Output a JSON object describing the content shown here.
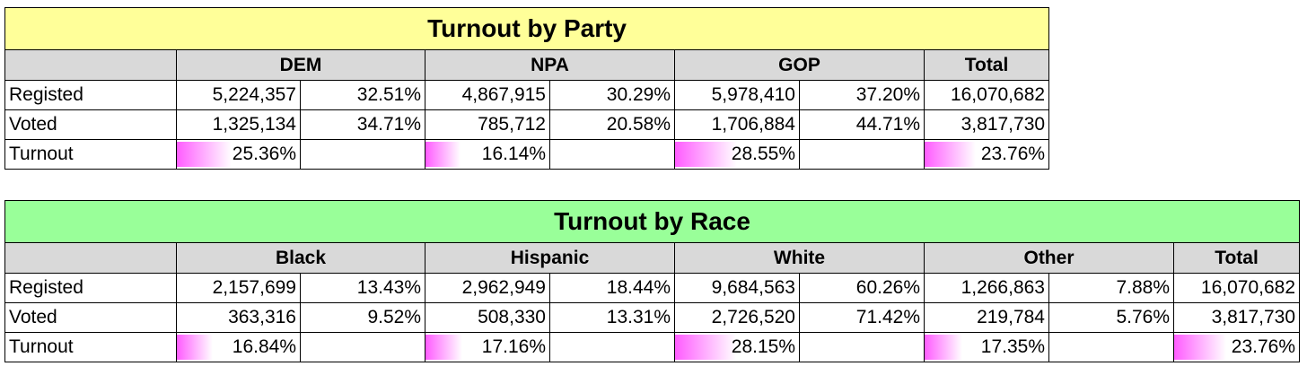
{
  "party": {
    "title": "Turnout by Party",
    "title_bg": "#ffff99",
    "groups": [
      "DEM",
      "NPA",
      "GOP"
    ],
    "total_label": "Total",
    "rows": [
      {
        "label": "Registed",
        "cells": [
          "5,224,357",
          "32.51%",
          "4,867,915",
          "30.29%",
          "5,978,410",
          "37.20%"
        ],
        "total": "16,070,682"
      },
      {
        "label": "Voted",
        "cells": [
          "1,325,134",
          "34.71%",
          "785,712",
          "20.58%",
          "1,706,884",
          "44.71%"
        ],
        "total": "3,817,730"
      }
    ],
    "turnout": {
      "label": "Turnout",
      "values": [
        "25.36%",
        "16.14%",
        "28.55%"
      ],
      "fractions": [
        0.2536,
        0.1614,
        0.2855
      ],
      "total": "23.76%",
      "total_fraction": 0.2376
    }
  },
  "race": {
    "title": "Turnout by Race",
    "title_bg": "#99ff99",
    "groups": [
      "Black",
      "Hispanic",
      "White",
      "Other"
    ],
    "total_label": "Total",
    "rows": [
      {
        "label": "Registed",
        "cells": [
          "2,157,699",
          "13.43%",
          "2,962,949",
          "18.44%",
          "9,684,563",
          "60.26%",
          "1,266,863",
          "7.88%"
        ],
        "total": "16,070,682"
      },
      {
        "label": "Voted",
        "cells": [
          "363,316",
          "9.52%",
          "508,330",
          "13.31%",
          "2,726,520",
          "71.42%",
          "219,784",
          "5.76%"
        ],
        "total": "3,817,730"
      }
    ],
    "turnout": {
      "label": "Turnout",
      "values": [
        "16.84%",
        "17.16%",
        "28.15%",
        "17.35%"
      ],
      "fractions": [
        0.1684,
        0.1716,
        0.2815,
        0.1735
      ],
      "total": "23.76%",
      "total_fraction": 0.2376
    }
  },
  "colors": {
    "header_bg": "#d9d9d9",
    "bar_start": "#ff5cff",
    "bar_end": "#ffffff"
  }
}
